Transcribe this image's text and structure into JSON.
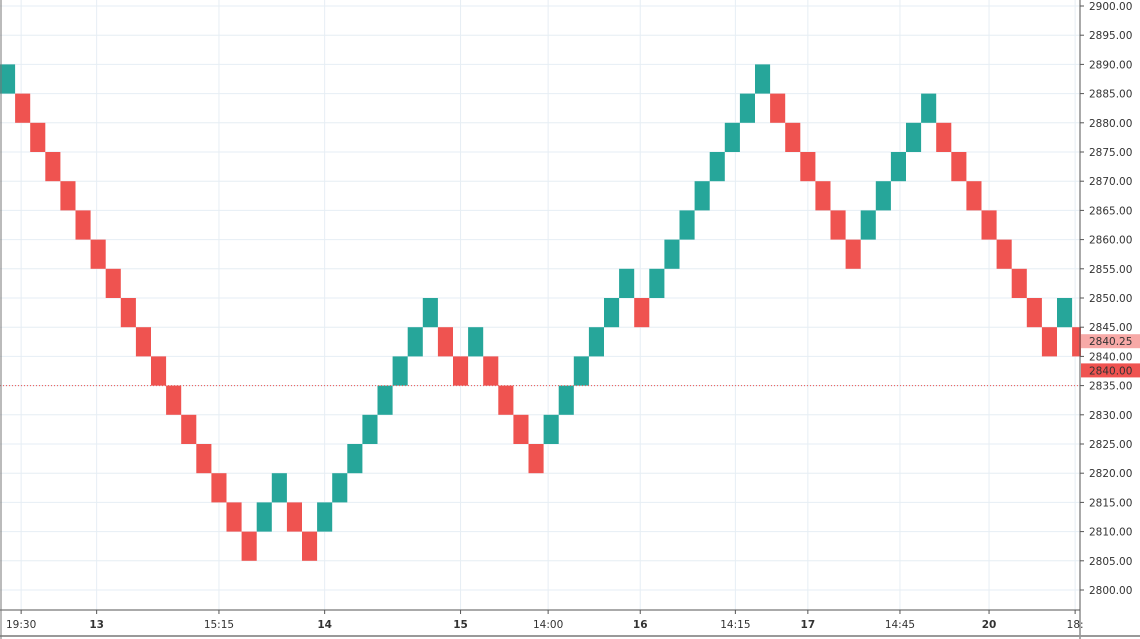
{
  "chart_data": {
    "type": "renko",
    "brick_size": 5,
    "ylim": [
      2797,
      2901
    ],
    "y_ticks": [
      "2900.00",
      "2895.00",
      "2890.00",
      "2885.00",
      "2880.00",
      "2875.00",
      "2870.00",
      "2865.00",
      "2860.00",
      "2855.00",
      "2850.00",
      "2845.00",
      "2840.00",
      "2835.00",
      "2830.00",
      "2825.00",
      "2820.00",
      "2815.00",
      "2810.00",
      "2805.00",
      "2800.00"
    ],
    "x_ticks": [
      {
        "label": "19:30",
        "brick": 1.4
      },
      {
        "label": "13",
        "brick": 6.4
      },
      {
        "label": "15:15",
        "brick": 14.5
      },
      {
        "label": "14",
        "brick": 21.5
      },
      {
        "label": "15",
        "brick": 30.5
      },
      {
        "label": "14:00",
        "brick": 36.3
      },
      {
        "label": "16",
        "brick": 42.4
      },
      {
        "label": "14:15",
        "brick": 48.7
      },
      {
        "label": "17",
        "brick": 53.5
      },
      {
        "label": "14:45",
        "brick": 59.6
      },
      {
        "label": "20",
        "brick": 65.5
      },
      {
        "label": "18:",
        "brick": 71.2
      }
    ],
    "bricks": [
      {
        "low": 2885,
        "dir": "up"
      },
      {
        "low": 2880,
        "dir": "down"
      },
      {
        "low": 2875,
        "dir": "down"
      },
      {
        "low": 2870,
        "dir": "down"
      },
      {
        "low": 2865,
        "dir": "down"
      },
      {
        "low": 2860,
        "dir": "down"
      },
      {
        "low": 2855,
        "dir": "down"
      },
      {
        "low": 2850,
        "dir": "down"
      },
      {
        "low": 2845,
        "dir": "down"
      },
      {
        "low": 2840,
        "dir": "down"
      },
      {
        "low": 2835,
        "dir": "down"
      },
      {
        "low": 2830,
        "dir": "down"
      },
      {
        "low": 2825,
        "dir": "down"
      },
      {
        "low": 2820,
        "dir": "down"
      },
      {
        "low": 2815,
        "dir": "down"
      },
      {
        "low": 2810,
        "dir": "down"
      },
      {
        "low": 2805,
        "dir": "down"
      },
      {
        "low": 2810,
        "dir": "up"
      },
      {
        "low": 2815,
        "dir": "up"
      },
      {
        "low": 2810,
        "dir": "down"
      },
      {
        "low": 2805,
        "dir": "down"
      },
      {
        "low": 2810,
        "dir": "up"
      },
      {
        "low": 2815,
        "dir": "up"
      },
      {
        "low": 2820,
        "dir": "up"
      },
      {
        "low": 2825,
        "dir": "up"
      },
      {
        "low": 2830,
        "dir": "up"
      },
      {
        "low": 2835,
        "dir": "up"
      },
      {
        "low": 2840,
        "dir": "up"
      },
      {
        "low": 2845,
        "dir": "up"
      },
      {
        "low": 2840,
        "dir": "down"
      },
      {
        "low": 2835,
        "dir": "down"
      },
      {
        "low": 2840,
        "dir": "up"
      },
      {
        "low": 2835,
        "dir": "down"
      },
      {
        "low": 2830,
        "dir": "down"
      },
      {
        "low": 2825,
        "dir": "down"
      },
      {
        "low": 2820,
        "dir": "down"
      },
      {
        "low": 2825,
        "dir": "up"
      },
      {
        "low": 2830,
        "dir": "up"
      },
      {
        "low": 2835,
        "dir": "up"
      },
      {
        "low": 2840,
        "dir": "up"
      },
      {
        "low": 2845,
        "dir": "up"
      },
      {
        "low": 2850,
        "dir": "up"
      },
      {
        "low": 2845,
        "dir": "down"
      },
      {
        "low": 2850,
        "dir": "up"
      },
      {
        "low": 2855,
        "dir": "up"
      },
      {
        "low": 2860,
        "dir": "up"
      },
      {
        "low": 2865,
        "dir": "up"
      },
      {
        "low": 2870,
        "dir": "up"
      },
      {
        "low": 2875,
        "dir": "up"
      },
      {
        "low": 2880,
        "dir": "up"
      },
      {
        "low": 2885,
        "dir": "up"
      },
      {
        "low": 2880,
        "dir": "down"
      },
      {
        "low": 2875,
        "dir": "down"
      },
      {
        "low": 2870,
        "dir": "down"
      },
      {
        "low": 2865,
        "dir": "down"
      },
      {
        "low": 2860,
        "dir": "down"
      },
      {
        "low": 2855,
        "dir": "down"
      },
      {
        "low": 2860,
        "dir": "up"
      },
      {
        "low": 2865,
        "dir": "up"
      },
      {
        "low": 2870,
        "dir": "up"
      },
      {
        "low": 2875,
        "dir": "up"
      },
      {
        "low": 2880,
        "dir": "up"
      },
      {
        "low": 2875,
        "dir": "down"
      },
      {
        "low": 2870,
        "dir": "down"
      },
      {
        "low": 2865,
        "dir": "down"
      },
      {
        "low": 2860,
        "dir": "down"
      },
      {
        "low": 2855,
        "dir": "down"
      },
      {
        "low": 2850,
        "dir": "down"
      },
      {
        "low": 2845,
        "dir": "down"
      },
      {
        "low": 2840,
        "dir": "down"
      },
      {
        "low": 2845,
        "dir": "up"
      },
      {
        "low": 2840,
        "dir": "down"
      }
    ],
    "reference_line": 2835,
    "price_labels": [
      {
        "value": 2840.25,
        "text": "2840.25",
        "kind": "last"
      },
      {
        "value": 2840.0,
        "text": "2840.00",
        "kind": "brick"
      }
    ],
    "colors": {
      "up": "#26a69a",
      "down": "#ef5350",
      "grid": "#e6eef4",
      "ref": "#ef5350",
      "last_bg": "#f7a9a7",
      "brick_bg": "#ef5350"
    }
  }
}
